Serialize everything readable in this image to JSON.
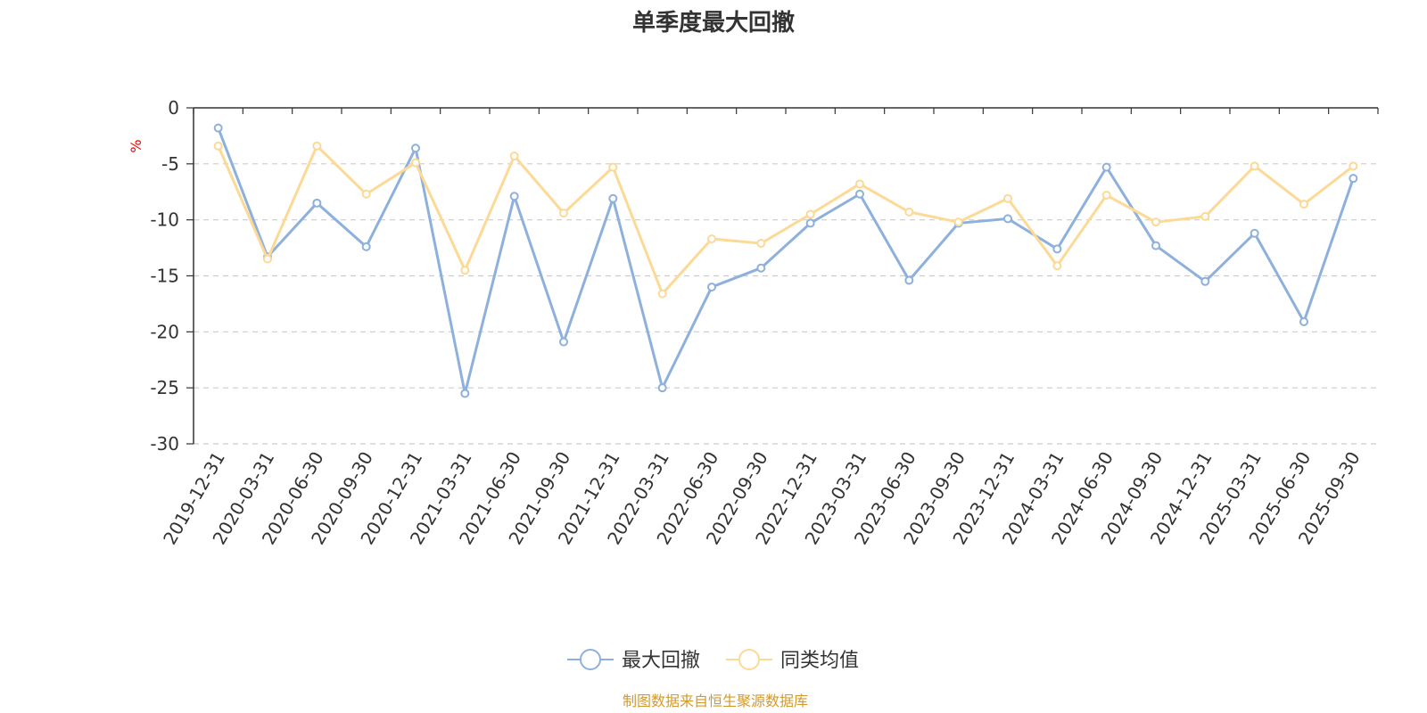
{
  "chart_data": {
    "type": "line",
    "title": "单季度最大回撤",
    "ylabel": "%",
    "xlabel": "",
    "ylim": [
      -30,
      0
    ],
    "yticks": [
      0,
      -5,
      -10,
      -15,
      -20,
      -25,
      -30
    ],
    "grid": true,
    "legend_position": "bottom",
    "categories": [
      "2019-12-31",
      "2020-03-31",
      "2020-06-30",
      "2020-09-30",
      "2020-12-31",
      "2021-03-31",
      "2021-06-30",
      "2021-09-30",
      "2021-12-31",
      "2022-03-31",
      "2022-06-30",
      "2022-09-30",
      "2022-12-31",
      "2023-03-31",
      "2023-06-30",
      "2023-09-30",
      "2023-12-31",
      "2024-03-31",
      "2024-06-30",
      "2024-09-30",
      "2024-12-31",
      "2025-03-31",
      "2025-06-30",
      "2025-09-30"
    ],
    "series": [
      {
        "name": "最大回撤",
        "color": "#8eb0dc",
        "values": [
          -1.8,
          -13.3,
          -8.5,
          -12.4,
          -3.6,
          -25.5,
          -7.9,
          -20.9,
          -8.1,
          -25.0,
          -16.0,
          -14.3,
          -10.3,
          -7.7,
          -15.4,
          -10.3,
          -9.9,
          -12.6,
          -5.3,
          -12.3,
          -15.5,
          -11.2,
          -19.1,
          -6.3
        ]
      },
      {
        "name": "同类均值",
        "color": "#fcd995",
        "values": [
          -3.4,
          -13.5,
          -3.4,
          -7.7,
          -4.9,
          -14.5,
          -4.3,
          -9.4,
          -5.3,
          -16.6,
          -11.7,
          -12.1,
          -9.5,
          -6.8,
          -9.3,
          -10.2,
          -8.1,
          -14.1,
          -7.8,
          -10.2,
          -9.7,
          -5.2,
          -8.6,
          -5.2
        ]
      }
    ],
    "source": "制图数据来自恒生聚源数据库"
  }
}
